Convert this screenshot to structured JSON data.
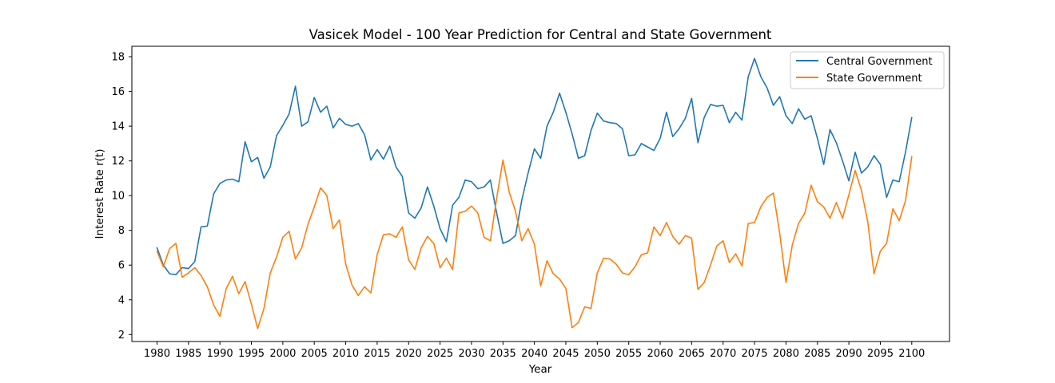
{
  "chart_data": {
    "type": "line",
    "title": "Vasicek Model - 100 Year Prediction for Central and State Government",
    "xlabel": "Year",
    "ylabel": "Interest Rate r(t)",
    "xlim": [
      1976,
      2106
    ],
    "ylim": [
      1.6,
      18.6
    ],
    "xticks": [
      1980,
      1985,
      1990,
      1995,
      2000,
      2005,
      2010,
      2015,
      2020,
      2025,
      2030,
      2035,
      2040,
      2045,
      2050,
      2055,
      2060,
      2065,
      2070,
      2075,
      2080,
      2085,
      2090,
      2095,
      2100
    ],
    "yticks": [
      2,
      4,
      6,
      8,
      10,
      12,
      14,
      16,
      18
    ],
    "grid": false,
    "legend_position": "top-right",
    "x_start": 1980,
    "x_step": 1,
    "series": [
      {
        "name": "Central Government",
        "color": "#1f77b4",
        "values": [
          7.0,
          6.0,
          5.5,
          5.45,
          5.85,
          5.8,
          6.2,
          8.2,
          8.25,
          10.1,
          10.7,
          10.9,
          10.95,
          10.8,
          13.1,
          11.95,
          12.2,
          11.0,
          11.65,
          13.45,
          14.05,
          14.7,
          16.3,
          14.0,
          14.25,
          15.65,
          14.8,
          15.15,
          13.9,
          14.45,
          14.1,
          14.0,
          14.15,
          13.5,
          12.05,
          12.65,
          12.1,
          12.85,
          11.65,
          11.1,
          9.0,
          8.7,
          9.3,
          10.5,
          9.4,
          8.1,
          7.35,
          9.45,
          9.9,
          10.9,
          10.8,
          10.4,
          10.5,
          10.9,
          9.0,
          7.25,
          7.4,
          7.7,
          9.75,
          11.3,
          12.7,
          12.15,
          14.0,
          14.8,
          15.9,
          14.8,
          13.55,
          12.15,
          12.3,
          13.75,
          14.75,
          14.3,
          14.2,
          14.15,
          13.85,
          12.3,
          12.35,
          13.0,
          12.8,
          12.6,
          13.3,
          14.8,
          13.4,
          13.85,
          14.45,
          15.6,
          13.05,
          14.5,
          15.25,
          15.15,
          15.2,
          14.2,
          14.8,
          14.35,
          16.85,
          17.9,
          16.85,
          16.2,
          15.2,
          15.7,
          14.6,
          14.15,
          15.0,
          14.4,
          14.6,
          13.3,
          11.8,
          13.8,
          13.05,
          12.0,
          10.85,
          12.5,
          11.3,
          11.65,
          12.3,
          11.8,
          9.9,
          10.9,
          10.8,
          12.5,
          14.5
        ]
      },
      {
        "name": "State Government",
        "color": "#ff7f0e",
        "values": [
          6.8,
          5.9,
          6.95,
          7.25,
          5.3,
          5.55,
          5.85,
          5.4,
          4.75,
          3.7,
          3.05,
          4.65,
          5.35,
          4.35,
          5.05,
          3.75,
          2.35,
          3.5,
          5.55,
          6.45,
          7.6,
          7.95,
          6.35,
          7.0,
          8.35,
          9.35,
          10.45,
          10.0,
          8.1,
          8.6,
          6.05,
          4.85,
          4.25,
          4.75,
          4.4,
          6.6,
          7.75,
          7.8,
          7.6,
          8.2,
          6.3,
          5.75,
          7.0,
          7.65,
          7.25,
          5.85,
          6.4,
          5.75,
          9.0,
          9.1,
          9.4,
          9.0,
          7.6,
          7.4,
          9.85,
          12.05,
          10.2,
          9.1,
          7.4,
          8.1,
          7.2,
          4.8,
          6.25,
          5.5,
          5.2,
          4.65,
          2.4,
          2.7,
          3.6,
          3.5,
          5.55,
          6.4,
          6.35,
          6.05,
          5.55,
          5.45,
          5.9,
          6.6,
          6.7,
          8.2,
          7.7,
          8.45,
          7.65,
          7.2,
          7.7,
          7.55,
          4.6,
          5.0,
          6.0,
          7.1,
          7.4,
          6.15,
          6.65,
          5.95,
          8.4,
          8.45,
          9.35,
          9.9,
          10.15,
          7.85,
          5.0,
          7.15,
          8.4,
          9.0,
          10.6,
          9.65,
          9.35,
          8.7,
          9.6,
          8.7,
          10.05,
          11.45,
          10.3,
          8.5,
          5.5,
          6.8,
          7.25,
          9.25,
          8.55,
          9.7,
          12.25
        ]
      }
    ]
  }
}
